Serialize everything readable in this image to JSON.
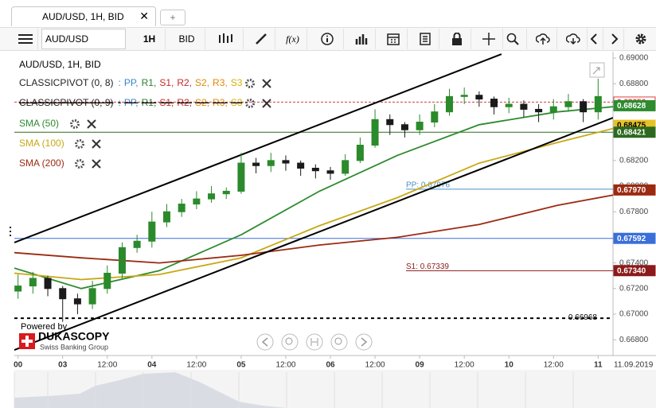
{
  "tabs": {
    "active": "AUD/USD, 1H, BID",
    "new": "+"
  },
  "toolbar": {
    "instrument": "AUD/USD",
    "period": "1H",
    "side": "BID",
    "indicators": "f(x)"
  },
  "branding": {
    "powered": "Powered by",
    "name": "DUKASCOPY",
    "tagline": "Swiss Banking Group"
  },
  "chart_data": {
    "type": "candlestick",
    "title": "AUD/USD, 1H, BID",
    "date": "11.09.2019",
    "up_color": "#2b8a2b",
    "down_color": "#1a1a1a",
    "x": [
      0,
      4,
      8,
      12,
      16,
      20,
      24,
      28,
      32,
      36,
      40,
      44,
      48,
      52,
      56,
      60,
      64,
      68,
      72,
      76,
      80,
      84,
      88,
      92,
      96,
      100,
      104,
      108,
      112,
      116,
      120,
      124,
      128,
      132,
      136,
      140,
      144,
      148,
      152,
      156
    ],
    "open": [
      0.6718,
      0.6722,
      0.6728,
      0.672,
      0.6712,
      0.6708,
      0.672,
      0.6732,
      0.6752,
      0.6757,
      0.6772,
      0.678,
      0.6786,
      0.679,
      0.6794,
      0.6796,
      0.6818,
      0.6816,
      0.682,
      0.6818,
      0.6814,
      0.6812,
      0.681,
      0.682,
      0.6832,
      0.6852,
      0.6848,
      0.6844,
      0.685,
      0.6858,
      0.687,
      0.6871,
      0.6868,
      0.6862,
      0.6864,
      0.686,
      0.6858,
      0.6862,
      0.6866,
      0.6858
    ],
    "high": [
      0.6731,
      0.6733,
      0.673,
      0.6722,
      0.6716,
      0.6726,
      0.6738,
      0.6756,
      0.6762,
      0.678,
      0.6786,
      0.679,
      0.6796,
      0.68,
      0.6799,
      0.6826,
      0.6822,
      0.6826,
      0.6824,
      0.682,
      0.6817,
      0.6815,
      0.6825,
      0.6838,
      0.686,
      0.6856,
      0.685,
      0.6856,
      0.6864,
      0.6876,
      0.6877,
      0.6874,
      0.687,
      0.6869,
      0.6867,
      0.6864,
      0.6868,
      0.6872,
      0.6868,
      0.6884
    ],
    "low": [
      0.6712,
      0.6716,
      0.6714,
      0.6694,
      0.67,
      0.6704,
      0.6716,
      0.6728,
      0.6748,
      0.6752,
      0.6768,
      0.6776,
      0.6782,
      0.6787,
      0.679,
      0.6794,
      0.681,
      0.6811,
      0.6812,
      0.6808,
      0.6806,
      0.6805,
      0.6808,
      0.6818,
      0.683,
      0.684,
      0.6838,
      0.684,
      0.6846,
      0.6855,
      0.6864,
      0.6862,
      0.6856,
      0.6857,
      0.6854,
      0.685,
      0.6852,
      0.6858,
      0.685,
      0.6852
    ],
    "close": [
      0.6722,
      0.6728,
      0.672,
      0.6712,
      0.6708,
      0.672,
      0.6732,
      0.6752,
      0.6757,
      0.6772,
      0.678,
      0.6786,
      0.679,
      0.6794,
      0.6796,
      0.6818,
      0.6816,
      0.682,
      0.6818,
      0.6814,
      0.6812,
      0.681,
      0.682,
      0.6832,
      0.6852,
      0.6848,
      0.6844,
      0.685,
      0.6858,
      0.687,
      0.6871,
      0.6868,
      0.6862,
      0.6864,
      0.686,
      0.6858,
      0.6862,
      0.6866,
      0.6858,
      0.687
    ],
    "series": [
      {
        "name": "SMA (50)",
        "color": "#2e8b2e",
        "x": [
          -1,
          17,
          38,
          60,
          81,
          102,
          124,
          145,
          160
        ],
        "values": [
          0.6736,
          0.672,
          0.6734,
          0.6762,
          0.6796,
          0.6824,
          0.6848,
          0.6858,
          0.6862
        ]
      },
      {
        "name": "SMA (100)",
        "color": "#c8a814",
        "x": [
          -1,
          17,
          38,
          60,
          81,
          102,
          124,
          145,
          160
        ],
        "values": [
          0.6732,
          0.6727,
          0.6731,
          0.6744,
          0.6769,
          0.6791,
          0.6818,
          0.6834,
          0.6845
        ]
      },
      {
        "name": "SMA (200)",
        "color": "#9b2a12",
        "x": [
          -1,
          17,
          38,
          60,
          81,
          102,
          124,
          145,
          160
        ],
        "values": [
          0.6748,
          0.6744,
          0.674,
          0.6746,
          0.6754,
          0.676,
          0.677,
          0.6785,
          0.6793
        ]
      }
    ],
    "pivots": [
      {
        "name": "CLASSICPIVOT (0, 8)",
        "hidden": false,
        "prefix": ":",
        "items": [
          {
            "text": "PP,",
            "color": "#3a86c8"
          },
          {
            "text": "R1,",
            "color": "#2e7d32"
          },
          {
            "text": "S1,",
            "color": "#c62828"
          },
          {
            "text": "R2,",
            "color": "#c62828"
          },
          {
            "text": "S2,",
            "color": "#e08a00"
          },
          {
            "text": "R3,",
            "color": "#e08a00"
          },
          {
            "text": "S3",
            "color": "#d4b000"
          }
        ]
      },
      {
        "name": "CLASSICPIVOT (0, 9)",
        "hidden": true,
        "prefix": ":",
        "items": [
          {
            "text": "PP,",
            "color": "#3a86c8"
          },
          {
            "text": "R1,",
            "color": "#2e7d32"
          },
          {
            "text": "S1,",
            "color": "#c62828"
          },
          {
            "text": "R2,",
            "color": "#c62828"
          },
          {
            "text": "S2,",
            "color": "#e08a00"
          },
          {
            "text": "R3,",
            "color": "#e08a00"
          },
          {
            "text": "S3",
            "color": "#d4b000"
          }
        ]
      }
    ],
    "levels": [
      {
        "value": 0.68656,
        "color": "#d04040",
        "style": "dashed"
      },
      {
        "value": 0.68421,
        "color": "#2d6a1f",
        "style": "solid"
      },
      {
        "value": 0.67976,
        "color": "#4a90c2",
        "style": "solid",
        "label": "PP: 0.67976"
      },
      {
        "value": 0.67592,
        "color": "#3a6fd8",
        "style": "solid"
      },
      {
        "value": 0.67339,
        "color": "#8b1a1a",
        "style": "solid",
        "label": "S1: 0.67339"
      },
      {
        "value": 0.66968,
        "color": "#000000",
        "style": "dotted",
        "label": "0.66968"
      }
    ],
    "trendlines": [
      {
        "color": "#000000",
        "x": [
          -1,
          130
        ],
        "values": [
          0.67559,
          0.69031
        ]
      },
      {
        "color": "#000000",
        "x": [
          -1,
          160
        ],
        "values": [
          0.6672,
          0.68534
        ]
      }
    ],
    "price_tags": [
      {
        "value": 0.68656,
        "label": "0.68656",
        "color": "#ffffff",
        "text_color": "#e04040"
      },
      {
        "value": 0.68628,
        "label": "0.68628",
        "color": "#2e8b2e",
        "text_color": "#ffffff"
      },
      {
        "value": 0.68475,
        "label": "0.68475",
        "color": "#e6c229",
        "text_color": "#000000"
      },
      {
        "value": 0.68421,
        "label": "0.68421",
        "color": "#2d6a1f",
        "text_color": "#ffffff"
      },
      {
        "value": 0.6797,
        "label": "0.67970",
        "color": "#9b2a12",
        "text_color": "#ffffff"
      },
      {
        "value": 0.67592,
        "label": "0.67592",
        "color": "#3a6fd8",
        "text_color": "#ffffff"
      },
      {
        "value": 0.6734,
        "label": "0.67340",
        "color": "#8b1a1a",
        "text_color": "#ffffff"
      }
    ],
    "xlim": [
      -1,
      160
    ],
    "ylim": [
      0.66677,
      0.6905
    ],
    "xticks": [
      {
        "value": 0,
        "label": "00"
      },
      {
        "value": 12,
        "label": "03"
      },
      {
        "value": 24,
        "label": "12:00"
      },
      {
        "value": 36,
        "label": "04"
      },
      {
        "value": 48,
        "label": "12:00"
      },
      {
        "value": 60,
        "label": "05"
      },
      {
        "value": 72,
        "label": "12:00"
      },
      {
        "value": 84,
        "label": "06"
      },
      {
        "value": 96,
        "label": "12:00"
      },
      {
        "value": 108,
        "label": "09"
      },
      {
        "value": 120,
        "label": "12:00"
      },
      {
        "value": 132,
        "label": "10"
      },
      {
        "value": 144,
        "label": "12:00"
      },
      {
        "value": 156,
        "label": "11"
      }
    ],
    "yticks": [
      {
        "value": 0.69,
        "label": "0.69000"
      },
      {
        "value": 0.688,
        "label": "0.68800"
      },
      {
        "value": 0.682,
        "label": "0.68200"
      },
      {
        "value": 0.68,
        "label": "0.68000"
      },
      {
        "value": 0.678,
        "label": "0.67800"
      },
      {
        "value": 0.674,
        "label": "0.67400"
      },
      {
        "value": 0.672,
        "label": "0.67200"
      },
      {
        "value": 0.67,
        "label": "0.67000"
      },
      {
        "value": 0.668,
        "label": "0.66800"
      }
    ],
    "grid": false
  }
}
